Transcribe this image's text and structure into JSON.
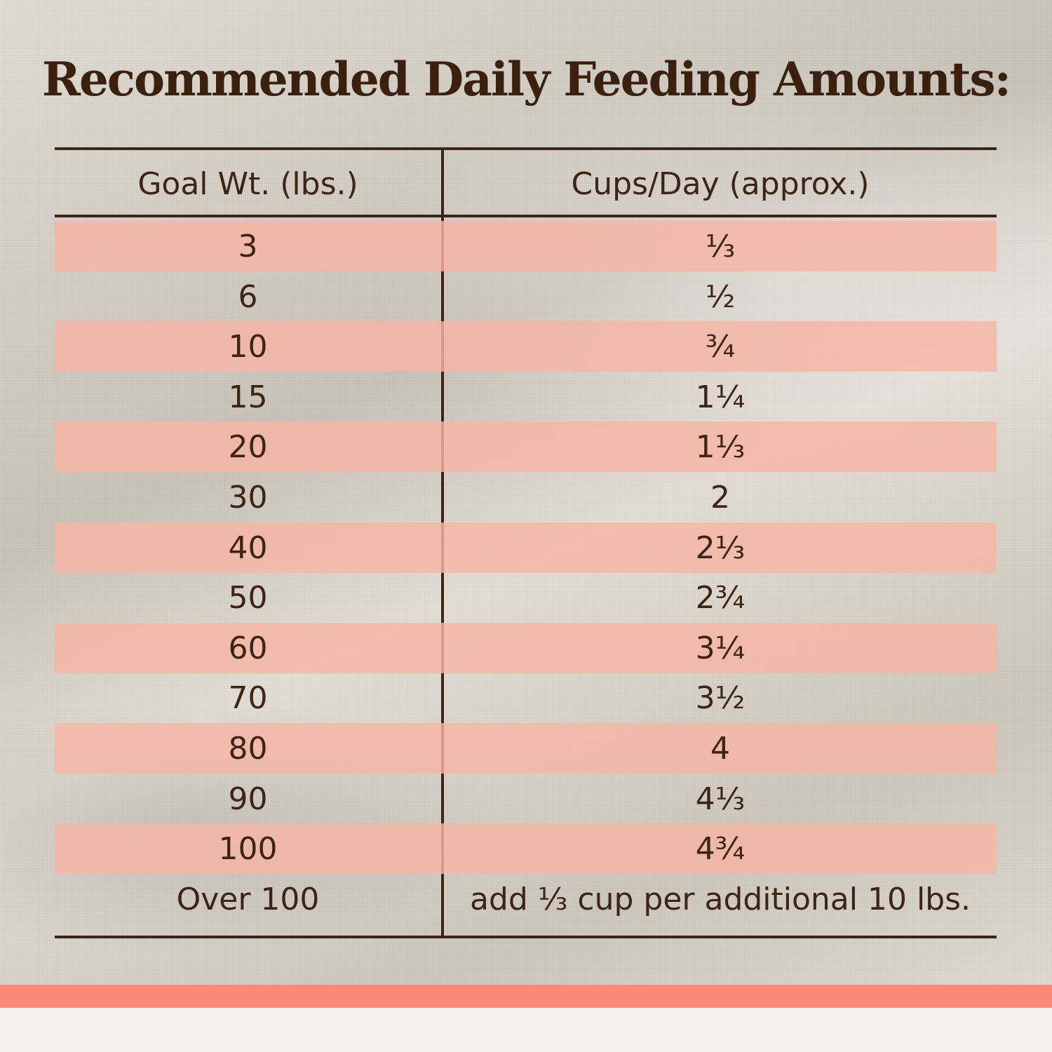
{
  "title": "Recommended Daily Feeding Amounts:",
  "table": {
    "headers": {
      "weight": "Goal Wt. (lbs.)",
      "cups": "Cups/Day (approx.)"
    },
    "rows": [
      {
        "weight": "3",
        "cups": "⅓"
      },
      {
        "weight": "6",
        "cups": "½"
      },
      {
        "weight": "10",
        "cups": "¾"
      },
      {
        "weight": "15",
        "cups": "1¼"
      },
      {
        "weight": "20",
        "cups": "1⅓"
      },
      {
        "weight": "30",
        "cups": "2"
      },
      {
        "weight": "40",
        "cups": "2⅓"
      },
      {
        "weight": "50",
        "cups": "2¾"
      },
      {
        "weight": "60",
        "cups": "3¼"
      },
      {
        "weight": "70",
        "cups": "3½"
      },
      {
        "weight": "80",
        "cups": "4"
      },
      {
        "weight": "90",
        "cups": "4⅓"
      },
      {
        "weight": "100",
        "cups": "4¾"
      },
      {
        "weight": "Over 100",
        "cups": "add ⅓ cup per additional 10 lbs."
      }
    ]
  },
  "colors": {
    "text": "#3d2414",
    "title": "#3b1f0f",
    "row_band": "#f6b5a3",
    "footer_band": "#fa8a75",
    "background_fabric": "#d9d3c6"
  }
}
